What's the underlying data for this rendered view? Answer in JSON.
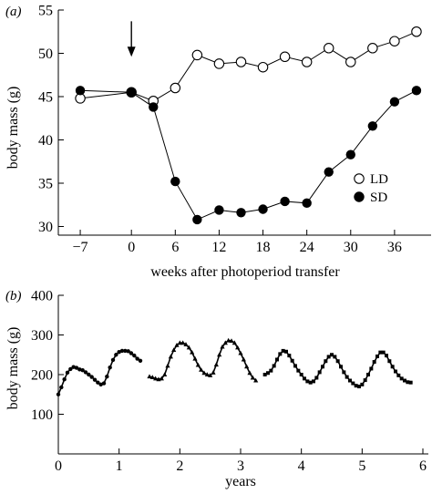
{
  "chart_data": [
    {
      "panel_label": "(a)",
      "type": "line",
      "xlabel": "weeks after photoperiod transfer",
      "ylabel": "body mass (g)",
      "xlim": [
        -10,
        41
      ],
      "ylim": [
        29,
        55
      ],
      "xticks": [
        -7,
        0,
        6,
        12,
        18,
        24,
        30,
        36
      ],
      "xtick_labels": [
        "-7",
        "0",
        "6",
        "12",
        "18",
        "24",
        "30",
        "36"
      ],
      "yticks": [
        30,
        35,
        40,
        45,
        50,
        55
      ],
      "ytick_labels": [
        "30",
        "35",
        "40",
        "45",
        "50",
        "55"
      ],
      "legend_position": "lower-right",
      "annotation": {
        "type": "arrow",
        "x": 0,
        "y_from": 53.7,
        "y_to": 49.6
      },
      "series": [
        {
          "name": "LD",
          "marker": "open-circle",
          "x": [
            -7,
            0,
            3,
            6,
            9,
            12,
            15,
            18,
            21,
            24,
            27,
            30,
            33,
            36,
            39
          ],
          "y": [
            44.8,
            45.5,
            44.5,
            46.0,
            49.8,
            48.8,
            49.0,
            48.4,
            49.6,
            49.0,
            50.6,
            49.0,
            50.6,
            51.4,
            52.5
          ]
        },
        {
          "name": "SD",
          "marker": "filled-circle",
          "x": [
            -7,
            0,
            3,
            6,
            9,
            12,
            15,
            18,
            21,
            24,
            27,
            30,
            33,
            36,
            39
          ],
          "y": [
            45.7,
            45.5,
            43.8,
            35.2,
            30.8,
            31.9,
            31.6,
            32.0,
            32.9,
            32.7,
            36.3,
            38.3,
            41.6,
            44.4,
            45.7
          ]
        }
      ]
    },
    {
      "panel_label": "(b)",
      "type": "line",
      "xlabel": "years",
      "ylabel": "body mass (g)",
      "xlim": [
        0,
        6
      ],
      "ylim": [
        0,
        400
      ],
      "xticks": [
        0,
        1,
        2,
        3,
        4,
        5,
        6
      ],
      "xtick_labels": [
        "0",
        "1",
        "2",
        "3",
        "4",
        "5",
        "6"
      ],
      "yticks": [
        100,
        200,
        300,
        400
      ],
      "ytick_labels": [
        "100",
        "200",
        "300",
        "400"
      ],
      "series": [
        {
          "marker": "filled-circle",
          "x": [
            0.0,
            0.05,
            0.1,
            0.15,
            0.2,
            0.25,
            0.3,
            0.35,
            0.4,
            0.45,
            0.5,
            0.55,
            0.6,
            0.65,
            0.7,
            0.75,
            0.8,
            0.85,
            0.9,
            0.95,
            1.0,
            1.05,
            1.1,
            1.15,
            1.2,
            1.25,
            1.3,
            1.35
          ],
          "y": [
            150,
            168,
            188,
            205,
            214,
            219,
            217,
            213,
            211,
            206,
            200,
            194,
            187,
            180,
            175,
            178,
            195,
            218,
            237,
            250,
            257,
            260,
            260,
            259,
            254,
            248,
            240,
            235
          ]
        },
        {
          "marker": "filled-triangle",
          "x": [
            1.5,
            1.55,
            1.6,
            1.65,
            1.7,
            1.75,
            1.8,
            1.85,
            1.9,
            1.95,
            2.0,
            2.05,
            2.1,
            2.15,
            2.2,
            2.25,
            2.3,
            2.35,
            2.4,
            2.45,
            2.5,
            2.55,
            2.6,
            2.65,
            2.7,
            2.75,
            2.8,
            2.85,
            2.9,
            2.95,
            3.0,
            3.05,
            3.1,
            3.15,
            3.2,
            3.25
          ],
          "y": [
            195,
            193,
            190,
            188,
            190,
            200,
            222,
            245,
            262,
            274,
            280,
            280,
            276,
            268,
            256,
            240,
            224,
            212,
            204,
            200,
            198,
            205,
            225,
            250,
            270,
            280,
            286,
            285,
            280,
            268,
            254,
            238,
            220,
            204,
            192,
            185
          ]
        },
        {
          "marker": "filled-square",
          "x": [
            3.4,
            3.45,
            3.5,
            3.55,
            3.6,
            3.65,
            3.7,
            3.75,
            3.8,
            3.85,
            3.9,
            3.95,
            4.0,
            4.05,
            4.1,
            4.15,
            4.2,
            4.25,
            4.3,
            4.35,
            4.4,
            4.45,
            4.5,
            4.55,
            4.6,
            4.65,
            4.7,
            4.75,
            4.8,
            4.85,
            4.9,
            4.95,
            5.0,
            5.05,
            5.1,
            5.15,
            5.2,
            5.25,
            5.3,
            5.35,
            5.4,
            5.45,
            5.5,
            5.55,
            5.6,
            5.65,
            5.7,
            5.75,
            5.8
          ],
          "y": [
            200,
            204,
            210,
            222,
            238,
            252,
            260,
            258,
            248,
            235,
            222,
            210,
            200,
            190,
            183,
            180,
            183,
            192,
            206,
            220,
            234,
            245,
            250,
            245,
            234,
            220,
            206,
            194,
            185,
            178,
            172,
            170,
            175,
            186,
            200,
            215,
            232,
            246,
            256,
            256,
            248,
            234,
            220,
            208,
            198,
            190,
            185,
            181,
            180
          ]
        }
      ]
    }
  ]
}
